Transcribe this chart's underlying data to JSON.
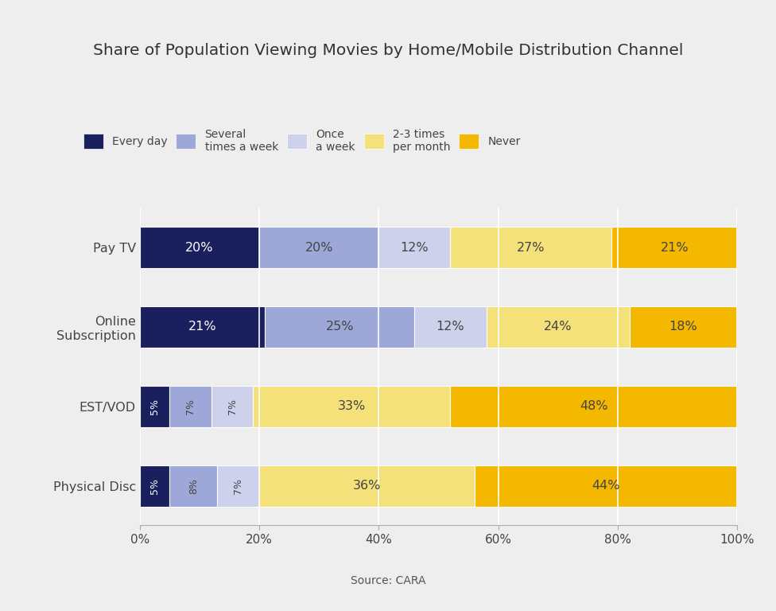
{
  "title": "Share of Population Viewing Movies by Home/Mobile Distribution Channel",
  "source": "Source: CARA",
  "background_color": "#eeeeee",
  "categories": [
    "Pay TV",
    "Online\nSubscription",
    "EST/VOD",
    "Physical Disc"
  ],
  "series": [
    {
      "label": "Every day",
      "color": "#1a1f5e",
      "values": [
        20,
        21,
        5,
        5
      ],
      "text_color": "white"
    },
    {
      "label": "Several\ntimes a week",
      "color": "#9da8d8",
      "values": [
        20,
        25,
        7,
        8
      ],
      "text_color": "#444444"
    },
    {
      "label": "Once\na week",
      "color": "#cdd1eb",
      "values": [
        12,
        12,
        7,
        7
      ],
      "text_color": "#444444"
    },
    {
      "label": "2-3 times\nper month",
      "color": "#f5e17a",
      "values": [
        27,
        24,
        33,
        36
      ],
      "text_color": "#444444"
    },
    {
      "label": "Never",
      "color": "#f5b800",
      "values": [
        21,
        18,
        48,
        44
      ],
      "text_color": "#444444"
    }
  ],
  "xlim": [
    0,
    100
  ],
  "xticks": [
    0,
    20,
    40,
    60,
    80,
    100
  ],
  "xticklabels": [
    "0%",
    "20%",
    "40%",
    "60%",
    "80%",
    "100%"
  ],
  "bar_height": 0.52,
  "title_fontsize": 14.5,
  "label_fontsize": 11.5,
  "tick_fontsize": 11,
  "source_fontsize": 10,
  "legend_fontsize": 10
}
